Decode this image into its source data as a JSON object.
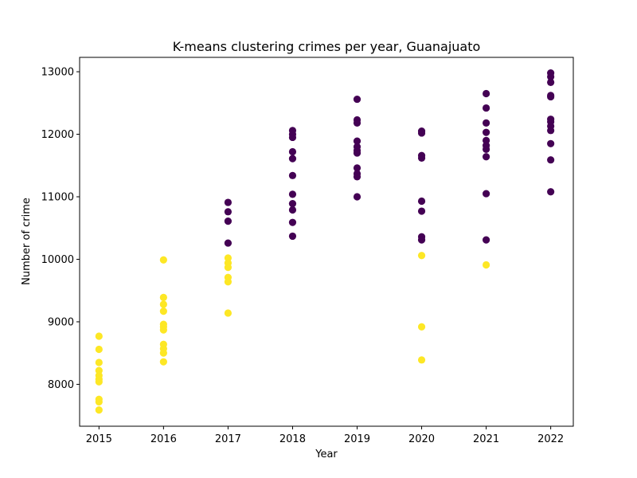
{
  "chart_data": {
    "type": "scatter",
    "title": "K-means clustering crimes per year, Guanajuato",
    "xlabel": "Year",
    "ylabel": "Number of crime",
    "xlim": [
      2014.7,
      2022.35
    ],
    "ylim": [
      7330,
      13230
    ],
    "x_ticks": [
      "2015",
      "2016",
      "2017",
      "2018",
      "2019",
      "2020",
      "2021",
      "2022"
    ],
    "y_ticks": [
      "8000",
      "9000",
      "10000",
      "11000",
      "12000",
      "13000"
    ],
    "grid": false,
    "legend": "none",
    "colors": {
      "cluster_0": "#440154",
      "cluster_1": "#fde725"
    },
    "series": [
      {
        "cluster": 0,
        "color": "#440154",
        "points": [
          [
            2017,
            10910
          ],
          [
            2017,
            10760
          ],
          [
            2017,
            10610
          ],
          [
            2017,
            10260
          ],
          [
            2018,
            12060
          ],
          [
            2018,
            12000
          ],
          [
            2018,
            11950
          ],
          [
            2018,
            11720
          ],
          [
            2018,
            11610
          ],
          [
            2018,
            11340
          ],
          [
            2018,
            11040
          ],
          [
            2018,
            10890
          ],
          [
            2018,
            10790
          ],
          [
            2018,
            10590
          ],
          [
            2018,
            10370
          ],
          [
            2019,
            12560
          ],
          [
            2019,
            12230
          ],
          [
            2019,
            12180
          ],
          [
            2019,
            11890
          ],
          [
            2019,
            11800
          ],
          [
            2019,
            11740
          ],
          [
            2019,
            11700
          ],
          [
            2019,
            11460
          ],
          [
            2019,
            11370
          ],
          [
            2019,
            11320
          ],
          [
            2019,
            11000
          ],
          [
            2020,
            12050
          ],
          [
            2020,
            12020
          ],
          [
            2020,
            11660
          ],
          [
            2020,
            11620
          ],
          [
            2020,
            10930
          ],
          [
            2020,
            10770
          ],
          [
            2020,
            10360
          ],
          [
            2020,
            10310
          ],
          [
            2021,
            12650
          ],
          [
            2021,
            12420
          ],
          [
            2021,
            12180
          ],
          [
            2021,
            12030
          ],
          [
            2021,
            11900
          ],
          [
            2021,
            11820
          ],
          [
            2021,
            11760
          ],
          [
            2021,
            11640
          ],
          [
            2021,
            11050
          ],
          [
            2021,
            10310
          ],
          [
            2022,
            12980
          ],
          [
            2022,
            12920
          ],
          [
            2022,
            12830
          ],
          [
            2022,
            12620
          ],
          [
            2022,
            12600
          ],
          [
            2022,
            12240
          ],
          [
            2022,
            12200
          ],
          [
            2022,
            12130
          ],
          [
            2022,
            12060
          ],
          [
            2022,
            11850
          ],
          [
            2022,
            11590
          ],
          [
            2022,
            11080
          ]
        ]
      },
      {
        "cluster": 1,
        "color": "#fde725",
        "points": [
          [
            2015,
            8770
          ],
          [
            2015,
            8560
          ],
          [
            2015,
            8350
          ],
          [
            2015,
            8220
          ],
          [
            2015,
            8140
          ],
          [
            2015,
            8080
          ],
          [
            2015,
            8040
          ],
          [
            2015,
            7760
          ],
          [
            2015,
            7720
          ],
          [
            2015,
            7590
          ],
          [
            2016,
            9990
          ],
          [
            2016,
            9390
          ],
          [
            2016,
            9280
          ],
          [
            2016,
            9170
          ],
          [
            2016,
            8960
          ],
          [
            2016,
            8920
          ],
          [
            2016,
            8870
          ],
          [
            2016,
            8640
          ],
          [
            2016,
            8570
          ],
          [
            2016,
            8500
          ],
          [
            2016,
            8360
          ],
          [
            2017,
            10020
          ],
          [
            2017,
            9940
          ],
          [
            2017,
            9870
          ],
          [
            2017,
            9710
          ],
          [
            2017,
            9640
          ],
          [
            2017,
            9140
          ],
          [
            2020,
            10060
          ],
          [
            2020,
            8920
          ],
          [
            2020,
            8390
          ],
          [
            2021,
            9910
          ]
        ]
      }
    ]
  }
}
